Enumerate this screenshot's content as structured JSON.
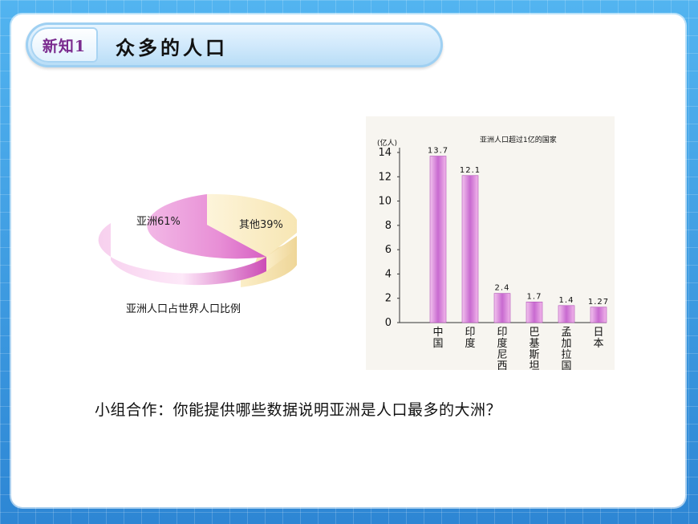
{
  "title": {
    "tag": "新知1",
    "text": "众多的人口"
  },
  "pie": {
    "caption": "亚洲人口占世界人口比例",
    "slices": [
      {
        "label": "亚洲61%",
        "value": 61
      },
      {
        "label": "其他39%",
        "value": 39
      }
    ]
  },
  "chart_data": {
    "type": "bar",
    "title": "亚洲人口超过1亿的国家",
    "ylabel": "(亿人)",
    "ylim": [
      0,
      14
    ],
    "yticks": [
      "14",
      "12",
      "10",
      "8",
      "6",
      "4",
      "2",
      "0"
    ],
    "categories": [
      "中国",
      "印度",
      "印度尼西亚",
      "巴基斯坦",
      "孟加拉国",
      "日本"
    ],
    "value_labels": [
      "13.7",
      "12.1",
      "2.4",
      "1.7",
      "1.4",
      "1.27"
    ],
    "values": [
      13.7,
      12.1,
      2.4,
      1.7,
      1.4,
      1.27
    ],
    "colors": {
      "bar": "#c86ad0"
    }
  },
  "question": "小组合作：你能提供哪些数据说明亚洲是人口最多的大洲？"
}
